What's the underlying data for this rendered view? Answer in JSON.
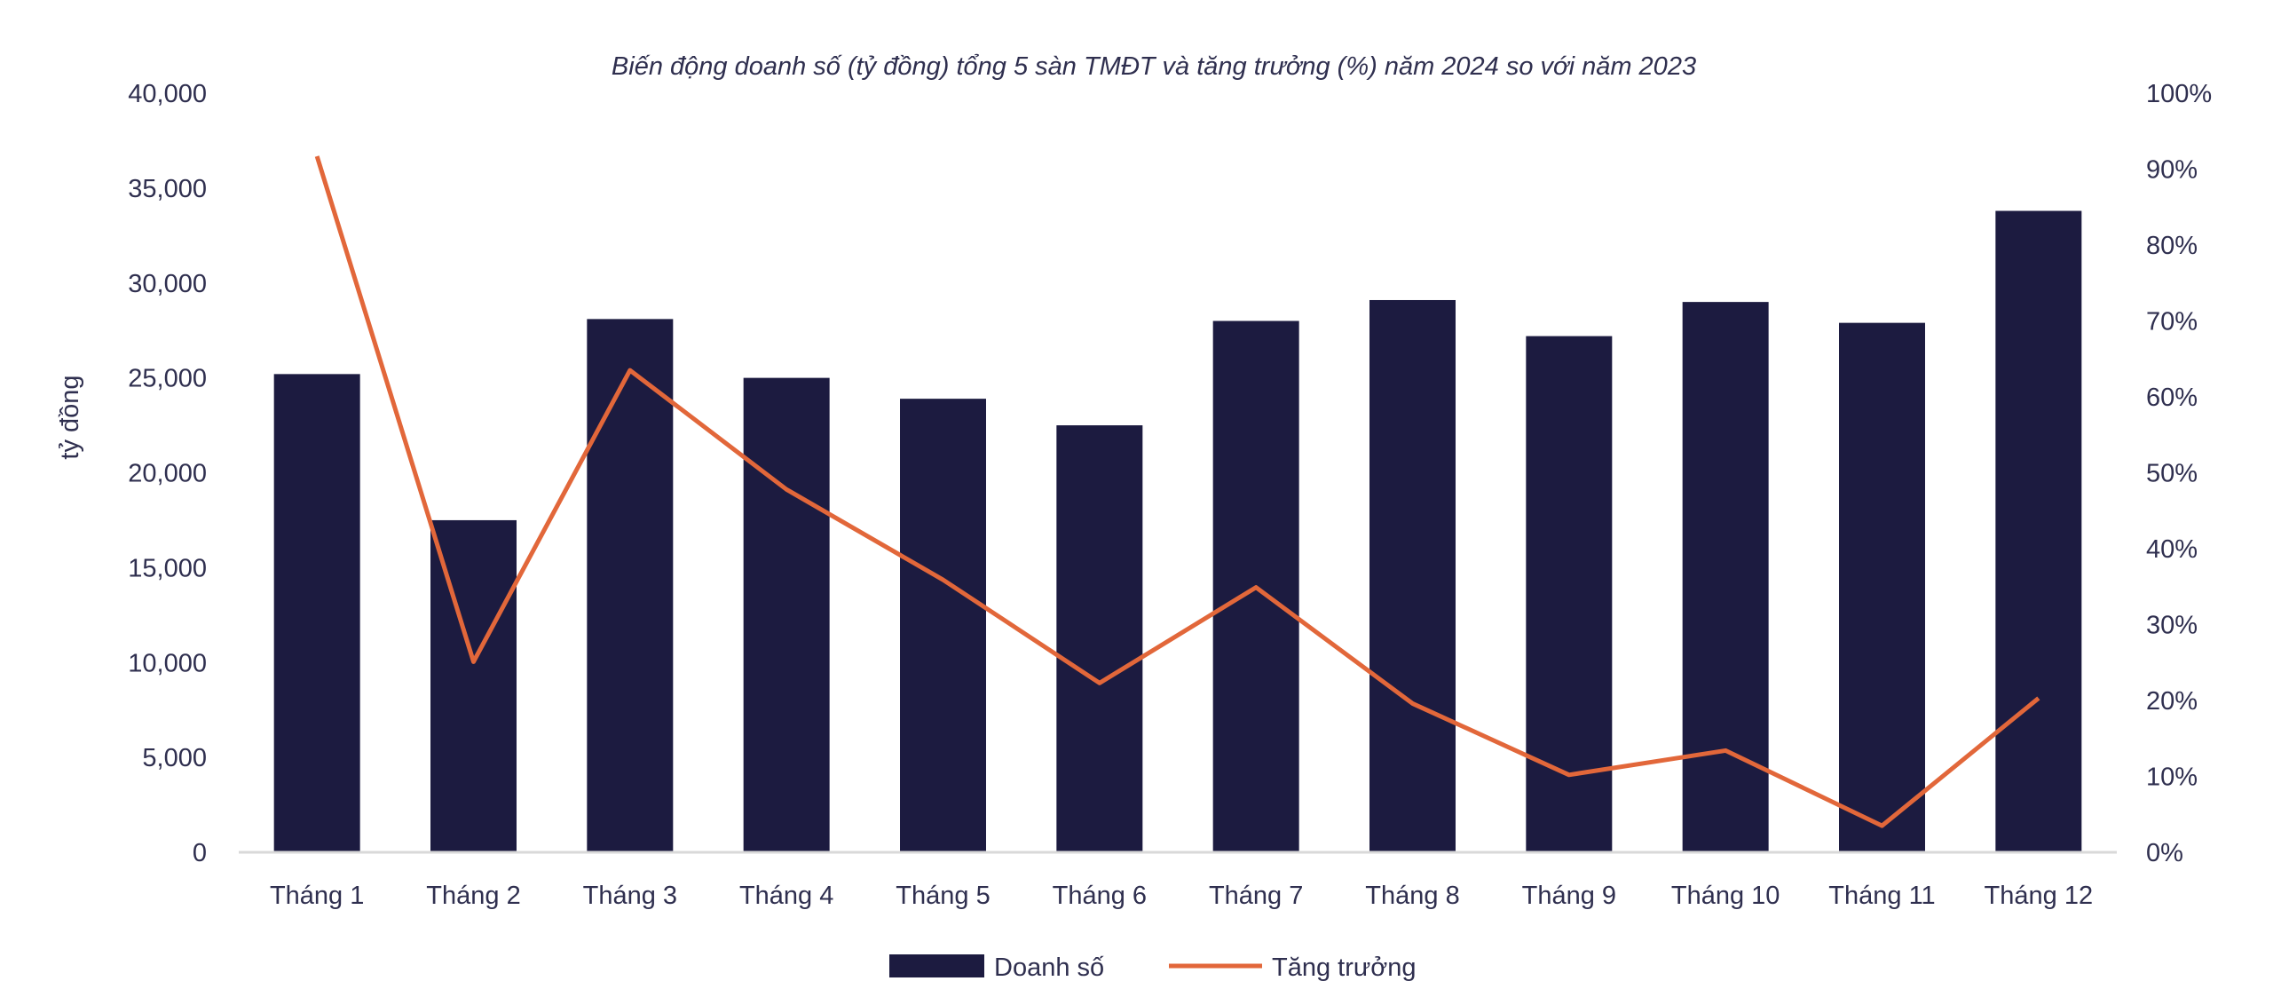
{
  "chart_data": {
    "type": "bar+line",
    "title": "Biến động doanh số (tỷ đồng) tổng 5 sàn TMĐT và tăng trưởng (%) năm 2024 so với năm 2023",
    "xlabel": "",
    "ylabel": "tỷ đồng",
    "y2label": "",
    "categories": [
      "Tháng 1",
      "Tháng 2",
      "Tháng 3",
      "Tháng 4",
      "Tháng 5",
      "Tháng 6",
      "Tháng 7",
      "Tháng 8",
      "Tháng 9",
      "Tháng 10",
      "Tháng 11",
      "Tháng 12"
    ],
    "ylim": [
      0,
      40000
    ],
    "y_ticks": [
      "0",
      "5,000",
      "10,000",
      "15,000",
      "20,000",
      "25,000",
      "30,000",
      "35,000",
      "40,000"
    ],
    "y2lim": [
      0,
      100
    ],
    "y2_ticks": [
      "0%",
      "10%",
      "20%",
      "30%",
      "40%",
      "50%",
      "60%",
      "70%",
      "80%",
      "90%",
      "100%"
    ],
    "grid": false,
    "legend": "bottom",
    "series": [
      {
        "name": "Doanh số",
        "type": "bar",
        "axis": "left",
        "color": "#1c1b40",
        "values": [
          25200,
          17500,
          28100,
          25000,
          23900,
          22500,
          28000,
          29100,
          27200,
          29000,
          27900,
          33800
        ]
      },
      {
        "name": "Tăng trưởng",
        "type": "line",
        "axis": "right",
        "unit": "%",
        "color": "#e2673a",
        "values": [
          91.7,
          25.1,
          63.5,
          47.8,
          35.9,
          22.3,
          34.9,
          19.6,
          10.2,
          13.4,
          3.5,
          20.3
        ]
      }
    ]
  }
}
